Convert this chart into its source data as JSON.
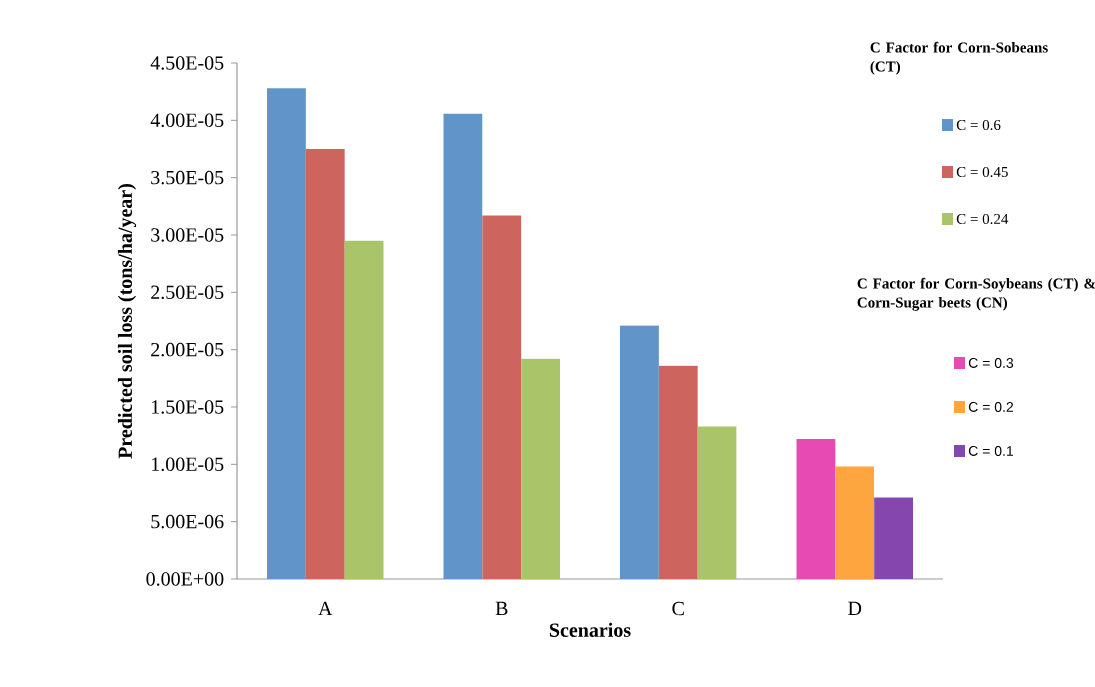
{
  "chart_data": {
    "type": "bar",
    "xlabel": "Scenarios",
    "ylabel": "Predicted soil loss (tons/ha/year)",
    "legend_title": "C Factor for Corn-Sobeans (CT)",
    "annotations": [
      "C Factor for Corn-Soybeans (CT) & Corn-Sugar beets (CN)"
    ],
    "categories": [
      "A",
      "B",
      "C",
      "D"
    ],
    "series": [
      {
        "name": "C = 0.6",
        "color": "#6194c8",
        "values": [
          4.28e-05,
          4.06e-05,
          2.21e-05,
          null
        ]
      },
      {
        "name": "C = 0.45",
        "color": "#cd645e",
        "values": [
          3.75e-05,
          3.17e-05,
          1.86e-05,
          null
        ]
      },
      {
        "name": "C = 0.24",
        "color": "#aac46a",
        "values": [
          2.95e-05,
          1.92e-05,
          1.33e-05,
          null
        ]
      },
      {
        "name": "C = 0.3",
        "color": "#e84ab3",
        "values": [
          null,
          null,
          null,
          1.22e-05
        ]
      },
      {
        "name": "C = 0.2",
        "color": "#fda53f",
        "values": [
          null,
          null,
          null,
          9.8e-06
        ]
      },
      {
        "name": "C = 0.1",
        "color": "#8547ae",
        "values": [
          null,
          null,
          null,
          7.1e-06
        ]
      }
    ],
    "ylim": [
      0,
      4.5e-05
    ],
    "yticks": [
      {
        "value": 0,
        "label": "0.00E+00"
      },
      {
        "value": 5e-06,
        "label": "5.00E-06"
      },
      {
        "value": 1e-05,
        "label": "1.00E-05"
      },
      {
        "value": 1.5e-05,
        "label": "1.50E-05"
      },
      {
        "value": 2e-05,
        "label": "2.00E-05"
      },
      {
        "value": 2.5e-05,
        "label": "2.50E-05"
      },
      {
        "value": 3e-05,
        "label": "3.00E-05"
      },
      {
        "value": 3.5e-05,
        "label": "3.50E-05"
      },
      {
        "value": 4e-05,
        "label": "4.00E-05"
      },
      {
        "value": 4.5e-05,
        "label": "4.50E-05"
      }
    ],
    "grid": false,
    "legend": "right"
  }
}
